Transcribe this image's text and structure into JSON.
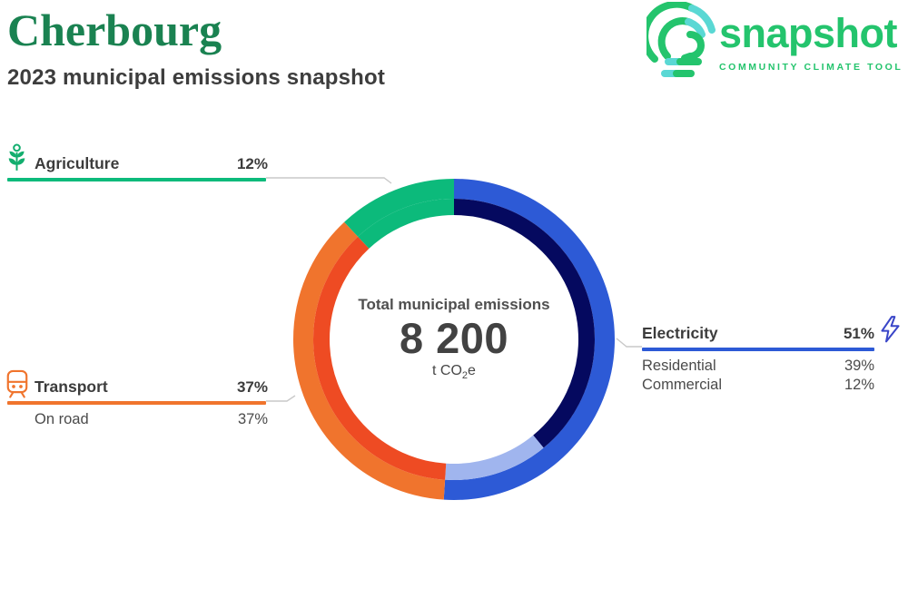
{
  "header": {
    "title": "Cherbourg",
    "subtitle": "2023 municipal emissions snapshot",
    "title_color": "#1a8251"
  },
  "logo": {
    "wordmark": "snapshot",
    "tagline": "COMMUNITY CLIMATE TOOL",
    "green": "#24c46d",
    "cyan": "#5ad8d4"
  },
  "chart_data": {
    "type": "donut",
    "title": "2023 municipal emissions snapshot",
    "center": {
      "label": "Total municipal emissions",
      "value": "8 200",
      "unit_prefix": "t CO",
      "unit_sub": "2",
      "unit_suffix": "e"
    },
    "total_value": 8200,
    "total_unit": "t CO2e",
    "sectors": [
      {
        "label": "Electricity",
        "pct": 51,
        "pct_label": "51%",
        "color": "#2d5ad6",
        "icon": "lightning-icon",
        "icon_color": "#3a46c8",
        "subsectors": [
          {
            "label": "Residential",
            "pct": 39,
            "pct_label": "39%",
            "color": "#05095f"
          },
          {
            "label": "Commercial",
            "pct": 12,
            "pct_label": "12%",
            "color": "#a0b5ee"
          }
        ]
      },
      {
        "label": "Transport",
        "pct": 37,
        "pct_label": "37%",
        "color": "#f0742d",
        "icon": "train-icon",
        "icon_color": "#f0742d",
        "subsectors": [
          {
            "label": "On road",
            "pct": 37,
            "pct_label": "37%",
            "color": "#ee4b23"
          }
        ]
      },
      {
        "label": "Agriculture",
        "pct": 12,
        "pct_label": "12%",
        "color": "#0cba7b",
        "icon": "plant-icon",
        "icon_color": "#12ae6e",
        "subsectors": []
      }
    ],
    "legend_position": "sides",
    "leader_line_color": "#c9c9c9"
  }
}
